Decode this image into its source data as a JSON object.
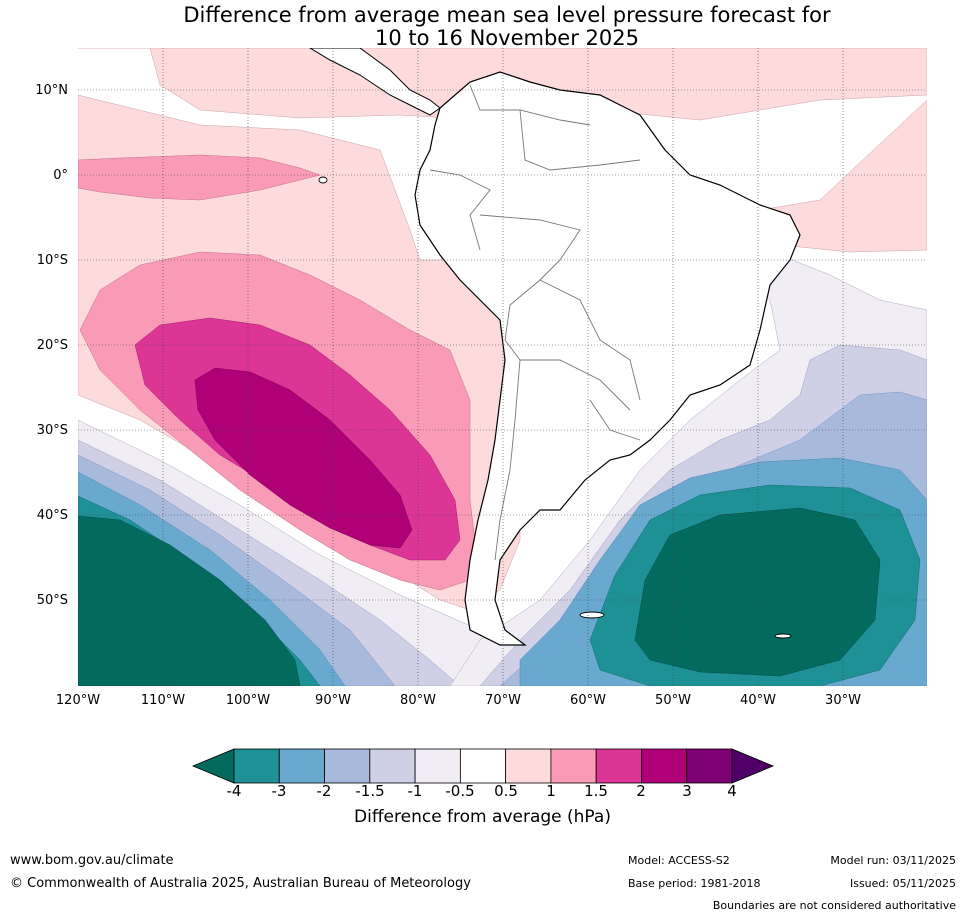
{
  "title": {
    "line1": "Difference from average mean sea level pressure forecast for",
    "line2": "10 to 16 November 2025"
  },
  "map": {
    "lat_labels": [
      "10°N",
      "0°",
      "10°S",
      "20°S",
      "30°S",
      "40°S",
      "50°S"
    ],
    "lon_labels": [
      "120°W",
      "110°W",
      "100°W",
      "90°W",
      "80°W",
      "70°W",
      "60°W",
      "50°W",
      "40°W",
      "30°W"
    ],
    "lat_range": [
      -60,
      15
    ],
    "lon_range": [
      -120,
      -20
    ]
  },
  "colorbar": {
    "title": "Difference from average (hPa)",
    "ticks": [
      "-4",
      "-3",
      "-2",
      "-1.5",
      "-1",
      "-0.5",
      "0.5",
      "1",
      "1.5",
      "2",
      "3",
      "4"
    ],
    "colors": [
      "#1e9196",
      "#69a9d0",
      "#a7badb",
      "#cfd0e6",
      "#f1edf4",
      "#ffffff",
      "#fddbdc",
      "#f99bb6",
      "#dc3595",
      "#af0077",
      "#7e0075"
    ],
    "under_color": "#036b5e",
    "over_color": "#4f0068"
  },
  "palette": {
    "land_fill": "#ffffff",
    "coast": "#000000",
    "border": "#777777",
    "grid": "#444444"
  },
  "footer": {
    "website": "www.bom.gov.au/climate",
    "copyright": "© Commonwealth of Australia 2025, Australian Bureau of Meteorology",
    "model": "Model: ACCESS-S2",
    "base_period": "Base period: 1981-2018",
    "model_run": "Model run: 03/11/2025",
    "issued": "Issued: 05/11/2025",
    "disclaimer": "Boundaries are not considered authoritative"
  }
}
